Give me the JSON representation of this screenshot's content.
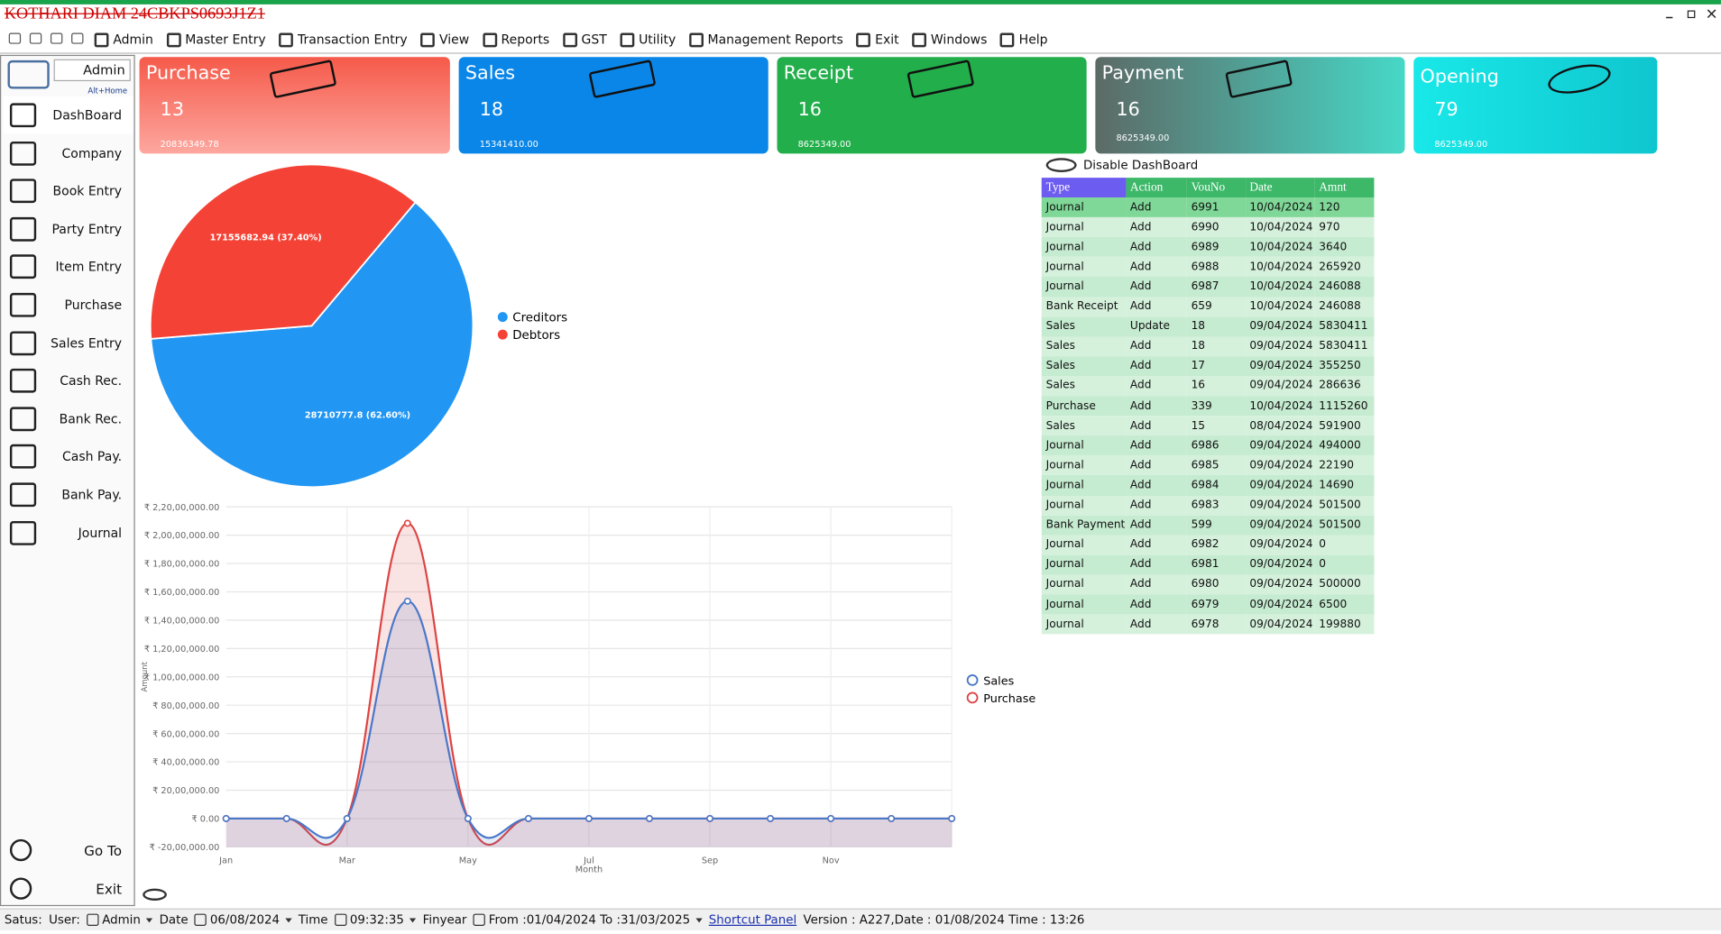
{
  "window": {
    "title": "KOTHARI DIAM 24CBKPS0693J1Z1"
  },
  "menu": [
    "Admin",
    "Master Entry",
    "Transaction Entry",
    "View",
    "Reports",
    "GST",
    "Utility",
    "Management Reports",
    "Exit",
    "Windows",
    "Help"
  ],
  "sidebar": {
    "user": "Admin",
    "shortcut": "Alt+Home",
    "items": [
      "DashBoard",
      "Company",
      "Book Entry",
      "Party Entry",
      "Item Entry",
      "Purchase",
      "Sales Entry",
      "Cash Rec.",
      "Bank Rec.",
      "Cash Pay.",
      "Bank Pay.",
      "Journal"
    ],
    "footer": [
      "Go To",
      "Exit"
    ]
  },
  "cards": [
    {
      "title": "Purchase",
      "count": 13,
      "amount": "20836349.78"
    },
    {
      "title": "Sales",
      "count": 18,
      "amount": "15341410.00"
    },
    {
      "title": "Receipt",
      "count": 16,
      "amount": "8625349.00"
    },
    {
      "title": "Payment",
      "count": 16,
      "amount": "8625349.00"
    },
    {
      "title": "Opening",
      "count": 79,
      "amount": "8625349.00"
    }
  ],
  "pie_chart": {
    "type": "pie",
    "categories": [
      "Creditors",
      "Debtors"
    ],
    "values": [
      28710777.8,
      17155682.94
    ],
    "value_labels": [
      "28710777.8 (62.60%)",
      "17155682.94 (37.40%)"
    ],
    "colors": [
      "#2196f3",
      "#f44336"
    ]
  },
  "line_chart": {
    "type": "line",
    "x_label": "Month",
    "y_label": "Amount",
    "categories": [
      "Jan",
      null,
      "Mar",
      null,
      "May",
      null,
      "Jul",
      null,
      "Sep",
      null,
      "Nov",
      null,
      null
    ],
    "series": [
      {
        "name": "Sales",
        "color": "#4a78c8",
        "values": [
          0,
          0,
          0,
          15341410,
          0,
          0,
          0,
          0,
          0,
          0,
          0,
          0,
          0
        ]
      },
      {
        "name": "Purchase",
        "color": "#dd4444",
        "values": [
          0,
          0,
          0,
          20836349.78,
          0,
          0,
          0,
          0,
          0,
          0,
          0,
          0,
          0
        ]
      }
    ],
    "ylim": [
      -2000000,
      22000000
    ],
    "yticks": [
      {
        "value": -2000000,
        "label": "₹ -20,00,000.00"
      },
      {
        "value": 0,
        "label": "₹ 0.00"
      },
      {
        "value": 2000000,
        "label": "₹ 20,00,000.00"
      },
      {
        "value": 4000000,
        "label": "₹ 40,00,000.00"
      },
      {
        "value": 6000000,
        "label": "₹ 60,00,000.00"
      },
      {
        "value": 8000000,
        "label": "₹ 80,00,000.00"
      },
      {
        "value": 10000000,
        "label": "₹ 1,00,00,000.00"
      },
      {
        "value": 12000000,
        "label": "₹ 1,20,00,000.00"
      },
      {
        "value": 14000000,
        "label": "₹ 1,40,00,000.00"
      },
      {
        "value": 16000000,
        "label": "₹ 1,60,00,000.00"
      },
      {
        "value": 18000000,
        "label": "₹ 1,80,00,000.00"
      },
      {
        "value": 20000000,
        "label": "₹ 2,00,00,000.00"
      },
      {
        "value": 22000000,
        "label": "₹ 2,20,00,000.00"
      }
    ],
    "grid": true
  },
  "dashboard_toggle": "Disable DashBoard",
  "table": {
    "columns": [
      "Type",
      "Action",
      "VouNo",
      "Date",
      "Amnt"
    ],
    "rows": [
      [
        "Journal",
        "Add",
        "6991",
        "10/04/2024",
        "120"
      ],
      [
        "Journal",
        "Add",
        "6990",
        "10/04/2024",
        "970"
      ],
      [
        "Journal",
        "Add",
        "6989",
        "10/04/2024",
        "3640"
      ],
      [
        "Journal",
        "Add",
        "6988",
        "10/04/2024",
        "265920"
      ],
      [
        "Journal",
        "Add",
        "6987",
        "10/04/2024",
        "246088"
      ],
      [
        "Bank Receipt",
        "Add",
        "659",
        "10/04/2024",
        "246088"
      ],
      [
        "Sales",
        "Update",
        "18",
        "09/04/2024",
        "5830411"
      ],
      [
        "Sales",
        "Add",
        "18",
        "09/04/2024",
        "5830411"
      ],
      [
        "Sales",
        "Add",
        "17",
        "09/04/2024",
        "355250"
      ],
      [
        "Sales",
        "Add",
        "16",
        "09/04/2024",
        "286636"
      ],
      [
        "Purchase",
        "Add",
        "339",
        "10/04/2024",
        "1115260"
      ],
      [
        "Sales",
        "Add",
        "15",
        "08/04/2024",
        "591900"
      ],
      [
        "Journal",
        "Add",
        "6986",
        "09/04/2024",
        "494000"
      ],
      [
        "Journal",
        "Add",
        "6985",
        "09/04/2024",
        "22190"
      ],
      [
        "Journal",
        "Add",
        "6984",
        "09/04/2024",
        "14690"
      ],
      [
        "Journal",
        "Add",
        "6983",
        "09/04/2024",
        "501500"
      ],
      [
        "Bank Payment",
        "Add",
        "599",
        "09/04/2024",
        "501500"
      ],
      [
        "Journal",
        "Add",
        "6982",
        "09/04/2024",
        "0"
      ],
      [
        "Journal",
        "Add",
        "6981",
        "09/04/2024",
        "0"
      ],
      [
        "Journal",
        "Add",
        "6980",
        "09/04/2024",
        "500000"
      ],
      [
        "Journal",
        "Add",
        "6979",
        "09/04/2024",
        "6500"
      ],
      [
        "Journal",
        "Add",
        "6978",
        "09/04/2024",
        "199880"
      ]
    ]
  },
  "status_bar": {
    "status": "Satus:",
    "user_label": "User:",
    "user": "Admin",
    "date_label": "Date",
    "date": "06/08/2024",
    "time_label": "Time",
    "time": "09:32:35",
    "finyear_label": "Finyear",
    "finyear": "From :01/04/2024 To :31/03/2025",
    "shortcut": "Shortcut Panel",
    "version": "Version : A227,Date : 01/08/2024 Time : 13:26"
  }
}
